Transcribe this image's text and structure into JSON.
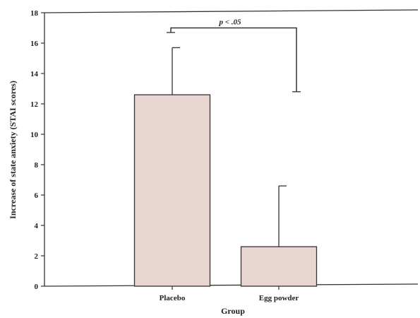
{
  "chart_data": {
    "type": "bar",
    "categories": [
      "Placebo",
      "Egg powder"
    ],
    "values": [
      12.6,
      2.6
    ],
    "error_upper": [
      15.7,
      6.6
    ],
    "ylabel": "Increase of state anxiety (STAI scores)",
    "xlabel": "Group",
    "ylim": [
      0,
      18
    ],
    "yticks": [
      "0",
      "2",
      "4",
      "6",
      "8",
      "10",
      "12",
      "14",
      "16",
      "18"
    ],
    "significance": {
      "label": "p < .05",
      "bracket_top": 17.0,
      "left_end": 16.7,
      "right_end": 12.8
    },
    "bar_color": "#e8d4d0",
    "grid": false,
    "legend": "none"
  }
}
